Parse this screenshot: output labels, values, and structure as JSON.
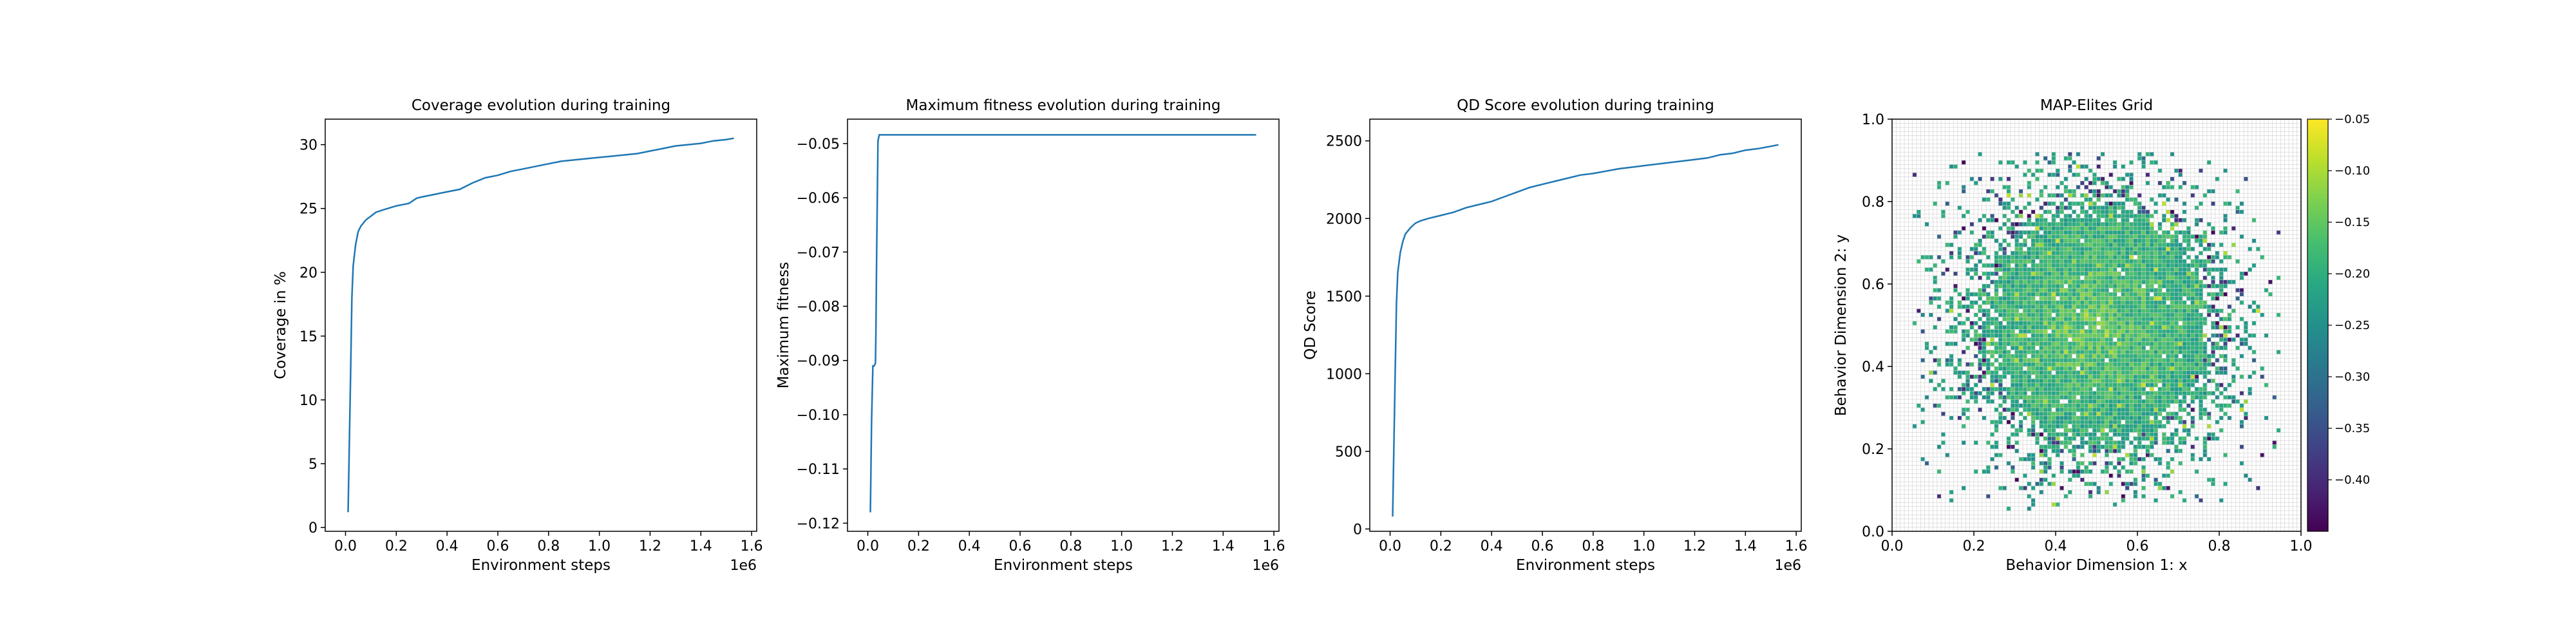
{
  "chart_data": [
    {
      "type": "line",
      "title": "Coverage evolution during training",
      "xlabel": "Environment steps",
      "ylabel": "Coverage in %",
      "x_offset_label": "1e6",
      "xlim": [
        -0.08,
        1.62
      ],
      "ylim": [
        -0.3,
        32
      ],
      "xticks": [
        0.0,
        0.2,
        0.4,
        0.6,
        0.8,
        1.0,
        1.2,
        1.4,
        1.6
      ],
      "xtick_labels": [
        "0.0",
        "0.2",
        "0.4",
        "0.6",
        "0.8",
        "1.0",
        "1.2",
        "1.4",
        "1.6"
      ],
      "yticks": [
        0,
        5,
        10,
        15,
        20,
        25,
        30
      ],
      "ytick_labels": [
        "0",
        "5",
        "10",
        "15",
        "20",
        "25",
        "30"
      ],
      "series": [
        {
          "color": "#1f77b4",
          "x": [
            0.01,
            0.02,
            0.025,
            0.03,
            0.04,
            0.05,
            0.06,
            0.08,
            0.1,
            0.12,
            0.15,
            0.2,
            0.25,
            0.28,
            0.3,
            0.35,
            0.4,
            0.45,
            0.5,
            0.55,
            0.6,
            0.65,
            0.7,
            0.75,
            0.8,
            0.85,
            0.9,
            0.95,
            1.0,
            1.05,
            1.1,
            1.15,
            1.2,
            1.25,
            1.3,
            1.35,
            1.4,
            1.45,
            1.5,
            1.53
          ],
          "y": [
            1.2,
            12.0,
            18.0,
            20.5,
            22.2,
            23.2,
            23.6,
            24.1,
            24.4,
            24.7,
            24.9,
            25.2,
            25.4,
            25.8,
            25.9,
            26.1,
            26.3,
            26.5,
            27.0,
            27.4,
            27.6,
            27.9,
            28.1,
            28.3,
            28.5,
            28.7,
            28.8,
            28.9,
            29.0,
            29.1,
            29.2,
            29.3,
            29.5,
            29.7,
            29.9,
            30.0,
            30.1,
            30.3,
            30.4,
            30.5
          ]
        }
      ]
    },
    {
      "type": "line",
      "title": "Maximum fitness evolution during training",
      "xlabel": "Environment steps",
      "ylabel": "Maximum fitness",
      "x_offset_label": "1e6",
      "xlim": [
        -0.08,
        1.62
      ],
      "ylim": [
        -0.1215,
        -0.0455
      ],
      "xticks": [
        0.0,
        0.2,
        0.4,
        0.6,
        0.8,
        1.0,
        1.2,
        1.4,
        1.6
      ],
      "xtick_labels": [
        "0.0",
        "0.2",
        "0.4",
        "0.6",
        "0.8",
        "1.0",
        "1.2",
        "1.4",
        "1.6"
      ],
      "yticks": [
        -0.05,
        -0.06,
        -0.07,
        -0.08,
        -0.09,
        -0.1,
        -0.11,
        -0.12
      ],
      "ytick_labels": [
        "−0.05",
        "−0.06",
        "−0.07",
        "−0.08",
        "−0.09",
        "−0.10",
        "−0.11",
        "−0.12"
      ],
      "series": [
        {
          "color": "#1f77b4",
          "x": [
            0.01,
            0.015,
            0.02,
            0.025,
            0.03,
            0.032,
            0.035,
            0.04,
            0.045,
            0.1,
            0.5,
            1.0,
            1.53
          ],
          "y": [
            -0.118,
            -0.101,
            -0.091,
            -0.091,
            -0.0905,
            -0.085,
            -0.07,
            -0.0495,
            -0.0484,
            -0.0484,
            -0.0484,
            -0.0484,
            -0.0484
          ]
        }
      ]
    },
    {
      "type": "line",
      "title": "QD Score evolution during training",
      "xlabel": "Environment steps",
      "ylabel": "QD Score",
      "x_offset_label": "1e6",
      "xlim": [
        -0.08,
        1.62
      ],
      "ylim": [
        -15,
        2640
      ],
      "xticks": [
        0.0,
        0.2,
        0.4,
        0.6,
        0.8,
        1.0,
        1.2,
        1.4,
        1.6
      ],
      "xtick_labels": [
        "0.0",
        "0.2",
        "0.4",
        "0.6",
        "0.8",
        "1.0",
        "1.2",
        "1.4",
        "1.6"
      ],
      "yticks": [
        0,
        500,
        1000,
        1500,
        2000,
        2500
      ],
      "ytick_labels": [
        "0",
        "500",
        "1000",
        "1500",
        "2000",
        "2500"
      ],
      "series": [
        {
          "color": "#1f77b4",
          "x": [
            0.01,
            0.02,
            0.025,
            0.03,
            0.04,
            0.05,
            0.06,
            0.08,
            0.1,
            0.12,
            0.15,
            0.2,
            0.25,
            0.3,
            0.35,
            0.4,
            0.45,
            0.5,
            0.55,
            0.6,
            0.65,
            0.7,
            0.75,
            0.8,
            0.85,
            0.9,
            0.95,
            1.0,
            1.05,
            1.1,
            1.15,
            1.2,
            1.25,
            1.3,
            1.35,
            1.4,
            1.45,
            1.5,
            1.53
          ],
          "y": [
            80,
            1000,
            1450,
            1650,
            1780,
            1850,
            1900,
            1940,
            1970,
            1985,
            2000,
            2020,
            2040,
            2070,
            2090,
            2110,
            2140,
            2170,
            2200,
            2220,
            2240,
            2260,
            2280,
            2290,
            2305,
            2320,
            2330,
            2340,
            2350,
            2360,
            2370,
            2380,
            2390,
            2410,
            2420,
            2440,
            2450,
            2465,
            2475
          ]
        }
      ]
    },
    {
      "type": "heatmap",
      "title": "MAP-Elites Grid",
      "xlabel": "Behavior Dimension 1: x",
      "ylabel": "Behavior Dimension 2: y",
      "xlim": [
        0.0,
        1.0
      ],
      "ylim": [
        0.0,
        1.0
      ],
      "xticks": [
        0.0,
        0.2,
        0.4,
        0.6,
        0.8,
        1.0
      ],
      "xtick_labels": [
        "0.0",
        "0.2",
        "0.4",
        "0.6",
        "0.8",
        "1.0"
      ],
      "yticks": [
        0.0,
        0.2,
        0.4,
        0.6,
        0.8,
        1.0
      ],
      "ytick_labels": [
        "0.0",
        "0.2",
        "0.4",
        "0.6",
        "0.8",
        "1.0"
      ],
      "grid_cells_per_axis": 100,
      "colorscale": "viridis",
      "color_range": [
        -0.45,
        -0.05
      ],
      "colorbar_ticks": [
        -0.05,
        -0.1,
        -0.15,
        -0.2,
        -0.25,
        -0.3,
        -0.35,
        -0.4
      ],
      "colorbar_tick_labels": [
        "−0.05",
        "−0.10",
        "−0.15",
        "−0.20",
        "−0.25",
        "−0.30",
        "−0.35",
        "−0.40"
      ],
      "cloud_center": [
        0.5,
        0.5
      ],
      "cloud_extent": {
        "x": [
          0.05,
          0.95
        ],
        "y": [
          0.05,
          0.92
        ]
      }
    }
  ]
}
